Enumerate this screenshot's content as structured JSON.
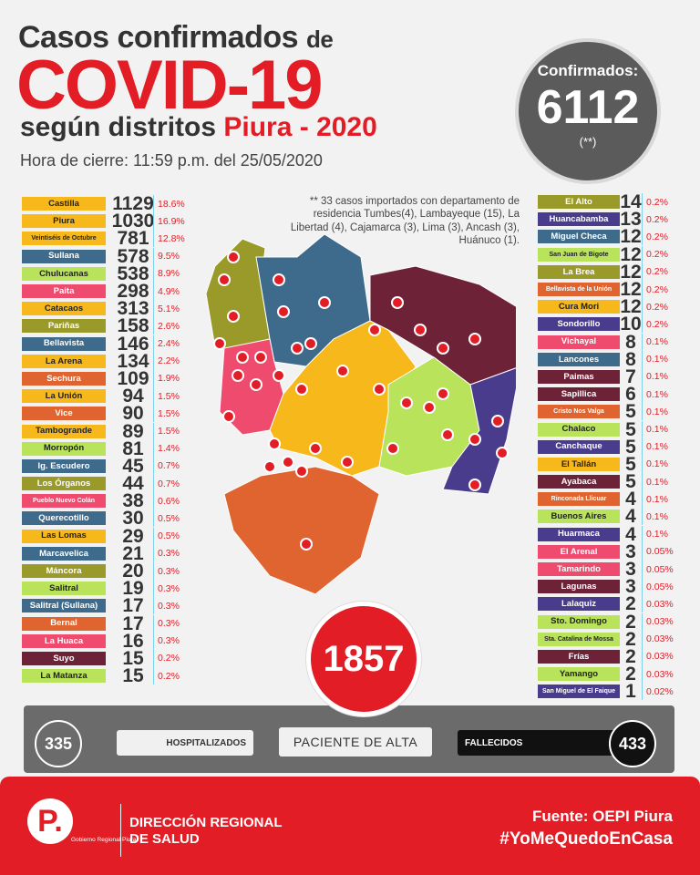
{
  "title": {
    "line1": "Casos confirmados",
    "line1_de": "de",
    "line2": "COVID-19",
    "line3": "según distritos",
    "line3_red": "Piura - 2020",
    "closing": "Hora de cierre: 11:59 p.m. del 25/05/2020"
  },
  "confirmed": {
    "label": "Confirmados:",
    "value": "6112",
    "note": "(**)"
  },
  "import_note": "** 33 casos importados con departamento de residencia Tumbes(4), Lambayeque (15), La Libertad (4), Cajamarca (3), Lima (3), Ancash (3), Huánuco (1).",
  "left_districts": [
    {
      "name": "Castilla",
      "count": "1129",
      "pct": "18.6%",
      "color": "#f6b81a"
    },
    {
      "name": "Piura",
      "count": "1030",
      "pct": "16.9%",
      "color": "#f6b81a"
    },
    {
      "name": "Veintiséis de Octubre",
      "count": "781",
      "pct": "12.8%",
      "color": "#f6b81a",
      "tiny": true
    },
    {
      "name": "Sullana",
      "count": "578",
      "pct": "9.5%",
      "color": "#3e6b8c",
      "dark": true
    },
    {
      "name": "Chulucanas",
      "count": "538",
      "pct": "8.9%",
      "color": "#b9e35a"
    },
    {
      "name": "Paita",
      "count": "298",
      "pct": "4.9%",
      "color": "#ef4b6e",
      "dark": true
    },
    {
      "name": "Catacaos",
      "count": "313",
      "pct": "5.1%",
      "color": "#f6b81a"
    },
    {
      "name": "Pariñas",
      "count": "158",
      "pct": "2.6%",
      "color": "#9a9a2a",
      "dark": true
    },
    {
      "name": "Bellavista",
      "count": "146",
      "pct": "2.4%",
      "color": "#3e6b8c",
      "dark": true
    },
    {
      "name": "La Arena",
      "count": "134",
      "pct": "2.2%",
      "color": "#f6b81a"
    },
    {
      "name": "Sechura",
      "count": "109",
      "pct": "1.9%",
      "color": "#e0642f",
      "dark": true
    },
    {
      "name": "La Unión",
      "count": "94",
      "pct": "1.5%",
      "color": "#f6b81a"
    },
    {
      "name": "Vice",
      "count": "90",
      "pct": "1.5%",
      "color": "#e0642f",
      "dark": true
    },
    {
      "name": "Tambogrande",
      "count": "89",
      "pct": "1.5%",
      "color": "#f6b81a"
    },
    {
      "name": "Morropón",
      "count": "81",
      "pct": "1.4%",
      "color": "#b9e35a"
    },
    {
      "name": "Ig. Escudero",
      "count": "45",
      "pct": "0.7%",
      "color": "#3e6b8c",
      "dark": true
    },
    {
      "name": "Los Órganos",
      "count": "44",
      "pct": "0.7%",
      "color": "#9a9a2a",
      "dark": true
    },
    {
      "name": "Pueblo Nuevo Colán",
      "count": "38",
      "pct": "0.6%",
      "color": "#ef4b6e",
      "dark": true,
      "tiny": true
    },
    {
      "name": "Querecotillo",
      "count": "30",
      "pct": "0.5%",
      "color": "#3e6b8c",
      "dark": true
    },
    {
      "name": "Las Lomas",
      "count": "29",
      "pct": "0.5%",
      "color": "#f6b81a"
    },
    {
      "name": "Marcavelica",
      "count": "21",
      "pct": "0.3%",
      "color": "#3e6b8c",
      "dark": true
    },
    {
      "name": "Máncora",
      "count": "20",
      "pct": "0.3%",
      "color": "#9a9a2a",
      "dark": true
    },
    {
      "name": "Salitral",
      "count": "19",
      "pct": "0.3%",
      "color": "#b9e35a"
    },
    {
      "name": "Salitral (Sullana)",
      "count": "17",
      "pct": "0.3%",
      "color": "#3e6b8c",
      "dark": true
    },
    {
      "name": "Bernal",
      "count": "17",
      "pct": "0.3%",
      "color": "#e0642f",
      "dark": true
    },
    {
      "name": "La Huaca",
      "count": "16",
      "pct": "0.3%",
      "color": "#ef4b6e",
      "dark": true
    },
    {
      "name": "Suyo",
      "count": "15",
      "pct": "0.2%",
      "color": "#6e2238",
      "dark": true
    },
    {
      "name": "La Matanza",
      "count": "15",
      "pct": "0.2%",
      "color": "#b9e35a"
    }
  ],
  "right_districts": [
    {
      "name": "El Alto",
      "count": "14",
      "pct": "0.2%",
      "color": "#9a9a2a",
      "dark": true
    },
    {
      "name": "Huancabamba",
      "count": "13",
      "pct": "0.2%",
      "color": "#4a3c8c",
      "dark": true
    },
    {
      "name": "Miguel Checa",
      "count": "12",
      "pct": "0.2%",
      "color": "#3e6b8c",
      "dark": true
    },
    {
      "name": "San Juan de Bigote",
      "count": "12",
      "pct": "0.2%",
      "color": "#b9e35a",
      "tiny": true
    },
    {
      "name": "La Brea",
      "count": "12",
      "pct": "0.2%",
      "color": "#9a9a2a",
      "dark": true
    },
    {
      "name": "Bellavista de la Unión",
      "count": "12",
      "pct": "0.2%",
      "color": "#e0642f",
      "dark": true,
      "tiny": true
    },
    {
      "name": "Cura Mori",
      "count": "12",
      "pct": "0.2%",
      "color": "#f6b81a"
    },
    {
      "name": "Sondorillo",
      "count": "10",
      "pct": "0.2%",
      "color": "#4a3c8c",
      "dark": true
    },
    {
      "name": "Vichayal",
      "count": "8",
      "pct": "0.1%",
      "color": "#ef4b6e",
      "dark": true
    },
    {
      "name": "Lancones",
      "count": "8",
      "pct": "0.1%",
      "color": "#3e6b8c",
      "dark": true
    },
    {
      "name": "Paimas",
      "count": "7",
      "pct": "0.1%",
      "color": "#6e2238",
      "dark": true
    },
    {
      "name": "Sapillica",
      "count": "6",
      "pct": "0.1%",
      "color": "#6e2238",
      "dark": true
    },
    {
      "name": "Cristo Nos Valga",
      "count": "5",
      "pct": "0.1%",
      "color": "#e0642f",
      "dark": true,
      "tiny": true
    },
    {
      "name": "Chalaco",
      "count": "5",
      "pct": "0.1%",
      "color": "#b9e35a"
    },
    {
      "name": "Canchaque",
      "count": "5",
      "pct": "0.1%",
      "color": "#4a3c8c",
      "dark": true
    },
    {
      "name": "El Tallán",
      "count": "5",
      "pct": "0.1%",
      "color": "#f6b81a"
    },
    {
      "name": "Ayabaca",
      "count": "5",
      "pct": "0.1%",
      "color": "#6e2238",
      "dark": true
    },
    {
      "name": "Rinconada Llicuar",
      "count": "4",
      "pct": "0.1%",
      "color": "#e0642f",
      "dark": true,
      "tiny": true
    },
    {
      "name": "Buenos Aires",
      "count": "4",
      "pct": "0.1%",
      "color": "#b9e35a"
    },
    {
      "name": "Huarmaca",
      "count": "4",
      "pct": "0.1%",
      "color": "#4a3c8c",
      "dark": true
    },
    {
      "name": "El Arenal",
      "count": "3",
      "pct": "0.05%",
      "color": "#ef4b6e",
      "dark": true
    },
    {
      "name": "Tamarindo",
      "count": "3",
      "pct": "0.05%",
      "color": "#ef4b6e",
      "dark": true
    },
    {
      "name": "Lagunas",
      "count": "3",
      "pct": "0.05%",
      "color": "#6e2238",
      "dark": true
    },
    {
      "name": "Lalaquiz",
      "count": "2",
      "pct": "0.03%",
      "color": "#4a3c8c",
      "dark": true
    },
    {
      "name": "Sto. Domingo",
      "count": "2",
      "pct": "0.03%",
      "color": "#b9e35a"
    },
    {
      "name": "Sta. Catalina de Mossa",
      "count": "2",
      "pct": "0.03%",
      "color": "#b9e35a",
      "tiny": true
    },
    {
      "name": "Frías",
      "count": "2",
      "pct": "0.03%",
      "color": "#6e2238",
      "dark": true
    },
    {
      "name": "Yamango",
      "count": "2",
      "pct": "0.03%",
      "color": "#b9e35a"
    },
    {
      "name": "San Miguel de El Faique",
      "count": "1",
      "pct": "0.02%",
      "color": "#4a3c8c",
      "dark": true,
      "tiny": true
    }
  ],
  "summary": {
    "hospitalized_count": "335",
    "hospitalized_label": "HOSPITALIZADOS",
    "discharged_count": "1857",
    "discharged_label": "PACIENTE DE ALTA",
    "deceased_label": "FALLECIDOS",
    "deceased_count": "433"
  },
  "footer": {
    "logo_letter": "P.",
    "logo_text": "Gobierno Regional Piura",
    "dir_line1": "DIRECCIÓN REGIONAL",
    "dir_line2": "DE SALUD",
    "source": "Fuente: OEPI Piura",
    "hashtag": "#YoMeQuedoEnCasa"
  },
  "colors": {
    "brand_red": "#e21d26",
    "dark_gray": "#5b5b5b"
  }
}
